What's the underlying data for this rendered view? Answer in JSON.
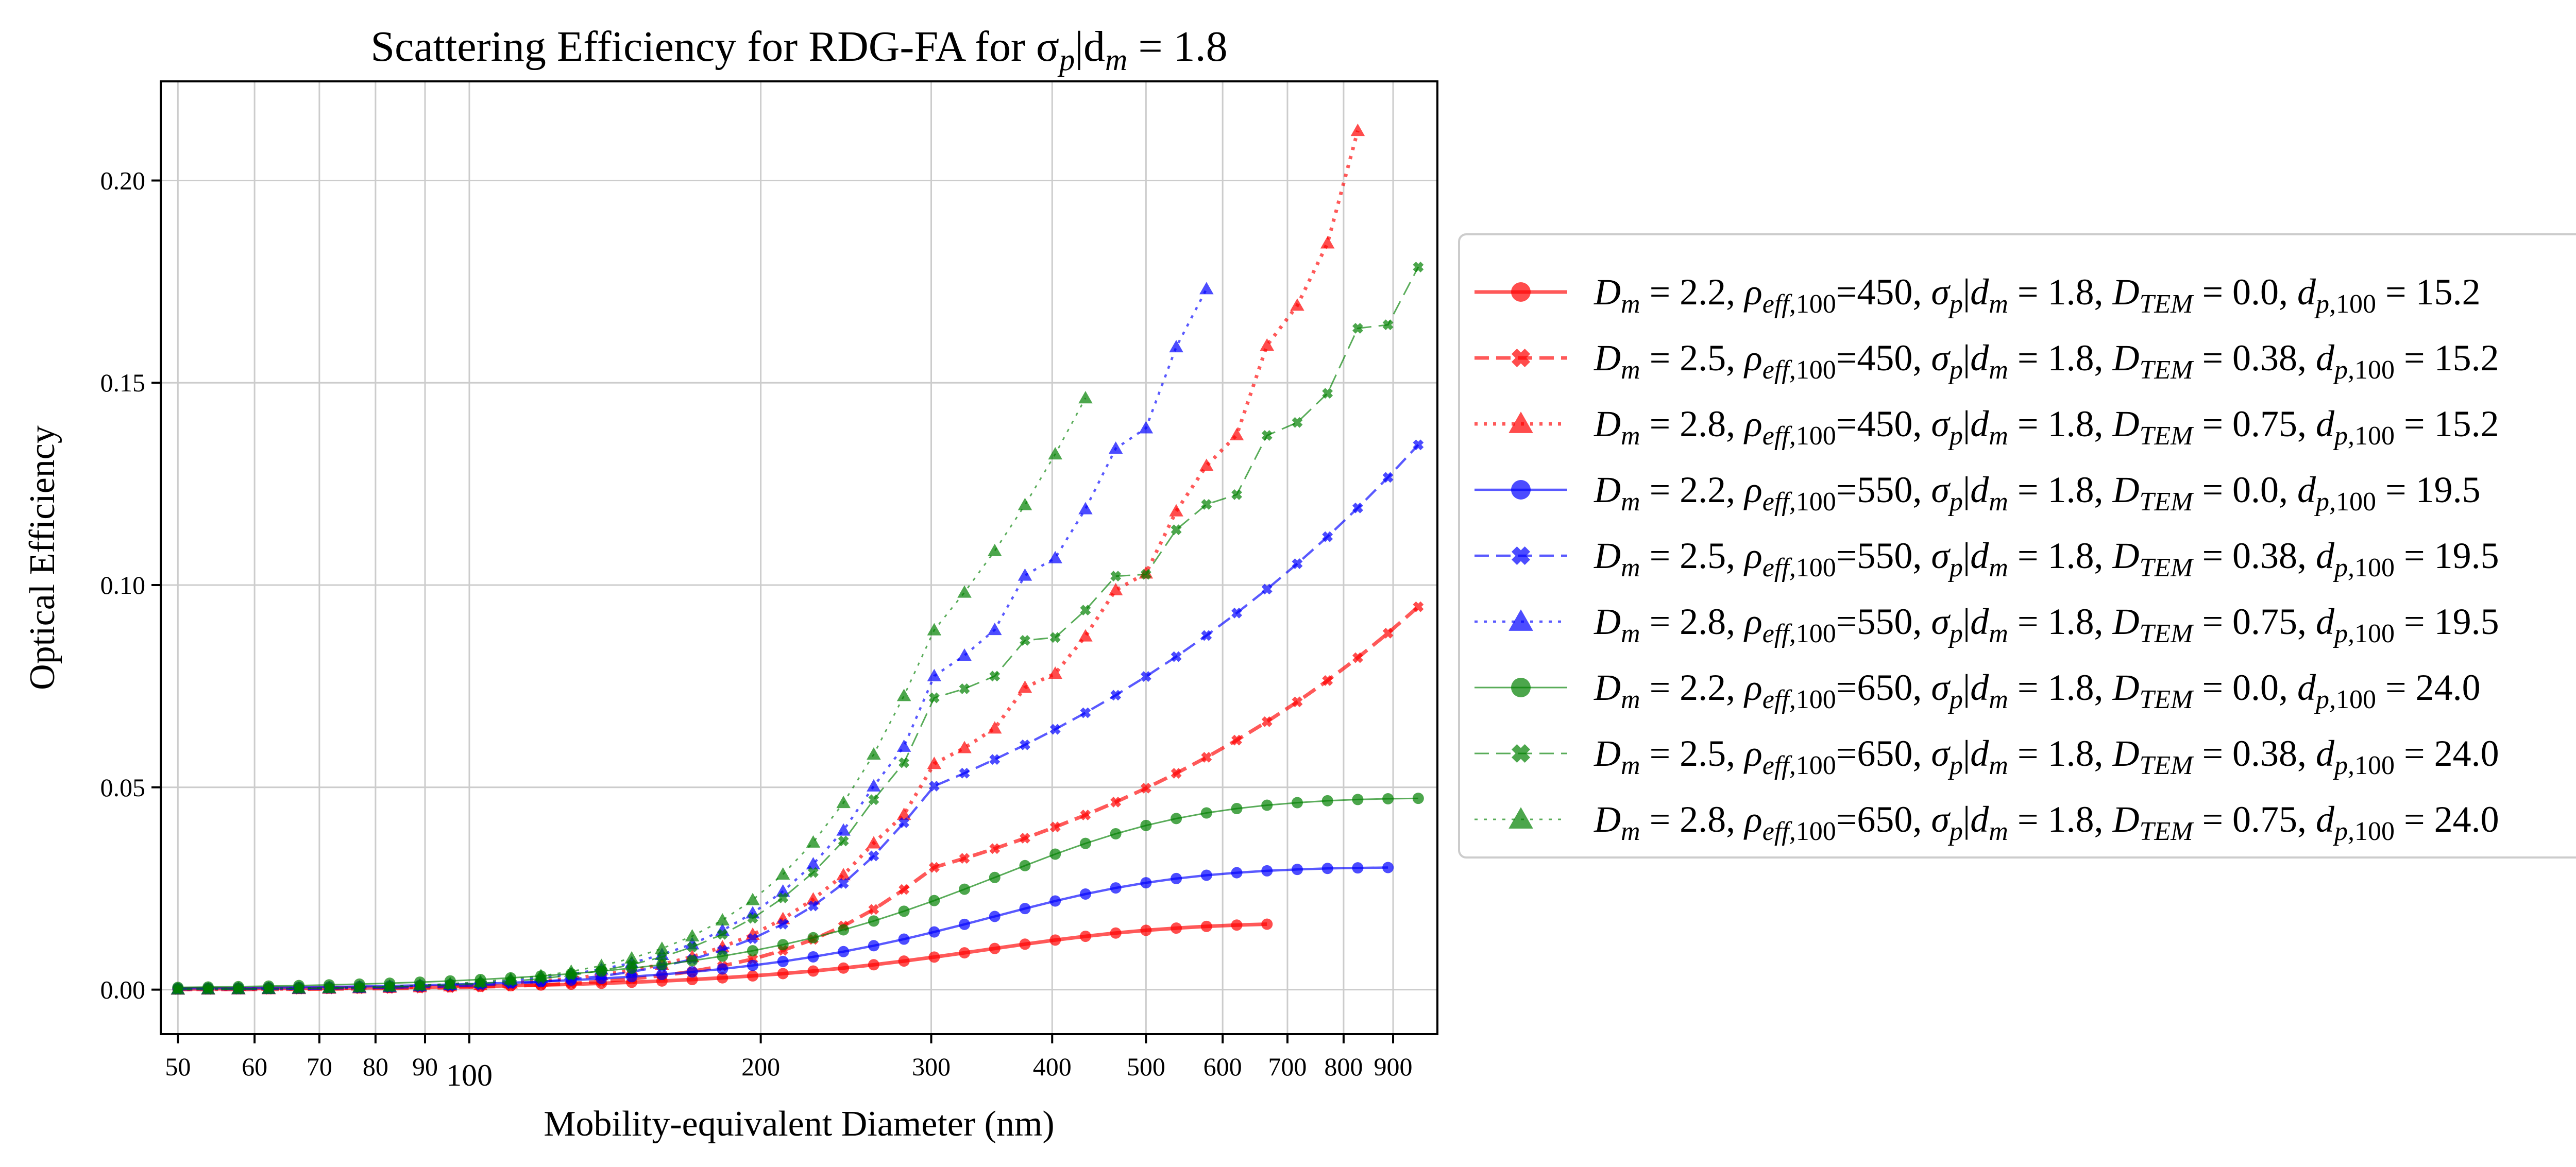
{
  "chart_data": {
    "type": "line",
    "title": "Scattering Efficiency for RDG-FA for σ",
    "title_sub": "p",
    "title_rest": "|d",
    "title_sub2": "m",
    "title_tail": " = 1.8",
    "xlabel": "Mobility-equivalent Diameter (nm)",
    "ylabel": "Optical Efficiency",
    "x_scale": "log",
    "xlim": [
      48,
      1000
    ],
    "ylim": [
      -0.011,
      0.2245
    ],
    "grid": true,
    "legend_placement": "center-right outside",
    "x_ticks": [
      {
        "value": 50,
        "label": "50"
      },
      {
        "value": 60,
        "label": "60"
      },
      {
        "value": 70,
        "label": "70"
      },
      {
        "value": 80,
        "label": "80"
      },
      {
        "value": 90,
        "label": "90"
      },
      {
        "value": 100,
        "label": "100"
      },
      {
        "value": 200,
        "label": "200"
      },
      {
        "value": 300,
        "label": "300"
      },
      {
        "value": 400,
        "label": "400"
      },
      {
        "value": 500,
        "label": "500"
      },
      {
        "value": 600,
        "label": "600"
      },
      {
        "value": 700,
        "label": "700"
      },
      {
        "value": 800,
        "label": "800"
      },
      {
        "value": 900,
        "label": "900"
      }
    ],
    "y_ticks": [
      {
        "value": 0.0,
        "label": "0.00"
      },
      {
        "value": 0.05,
        "label": "0.05"
      },
      {
        "value": 0.1,
        "label": "0.10"
      },
      {
        "value": 0.15,
        "label": "0.15"
      },
      {
        "value": 0.2,
        "label": "0.20"
      }
    ],
    "series": [
      {
        "Dm": "2.2",
        "rho": "450",
        "sig": "1.8",
        "Dtem": "0.0",
        "dp": "15.2",
        "color": "#ff0000",
        "marker": "circle",
        "dash": "solid",
        "x_max": 700,
        "y_max": 0.0165,
        "x_at_peak": 630,
        "x_ref": 330,
        "y_at_ref": 0.0108,
        "exp_high": 2.2
      },
      {
        "Dm": "2.5",
        "rho": "450",
        "sig": "1.8",
        "Dtem": "0.38",
        "dp": "15.2",
        "color": "#ff0000",
        "marker": "x",
        "dash": "dashed",
        "x_max": 1000,
        "y_max": 0.099,
        "x_ref": 300,
        "y_at_ref": 0.03,
        "exp_high": 2.0
      },
      {
        "Dm": "2.8",
        "rho": "450",
        "sig": "1.8",
        "Dtem": "0.75",
        "dp": "15.2",
        "color": "#ff0000",
        "marker": "triangle",
        "dash": "dotted",
        "x_max": 860,
        "y_max": 0.217,
        "x_ref": 300,
        "y_at_ref": 0.054,
        "exp_high": 2.7,
        "jitter": true
      },
      {
        "Dm": "2.2",
        "rho": "550",
        "sig": "1.8",
        "Dtem": "0.0",
        "dp": "19.5",
        "color": "#0000ff",
        "marker": "circle",
        "dash": "solid",
        "x_max": 900,
        "y_max": 0.03,
        "x_at_peak": 760,
        "x_ref": 330,
        "y_at_ref": 0.019,
        "exp_high": 2.2
      },
      {
        "Dm": "2.5",
        "rho": "550",
        "sig": "1.8",
        "Dtem": "0.38",
        "dp": "19.5",
        "color": "#0000ff",
        "marker": "x",
        "dash": "dashed",
        "x_max": 1000,
        "y_max": 0.14,
        "x_ref": 300,
        "y_at_ref": 0.05,
        "exp_high": 1.9
      },
      {
        "Dm": "2.8",
        "rho": "550",
        "sig": "1.8",
        "Dtem": "0.75",
        "dp": "19.5",
        "color": "#0000ff",
        "marker": "triangle",
        "dash": "dotted",
        "x_max": 600,
        "y_max": 0.18,
        "x_ref": 300,
        "y_at_ref": 0.075,
        "exp_high": 2.3,
        "jitter": true
      },
      {
        "Dm": "2.2",
        "rho": "650",
        "sig": "1.8",
        "Dtem": "0.0",
        "dp": "24.0",
        "color": "#008000",
        "marker": "circle",
        "dash": "solid",
        "x_max": 1000,
        "y_max": 0.047,
        "x_at_peak": 800,
        "x_ref": 330,
        "y_at_ref": 0.029,
        "exp_high": 2.1
      },
      {
        "Dm": "2.5",
        "rho": "650",
        "sig": "1.8",
        "Dtem": "0.38",
        "dp": "24.0",
        "color": "#008000",
        "marker": "x",
        "dash": "dashed",
        "x_max": 1000,
        "y_max": 0.185,
        "x_ref": 300,
        "y_at_ref": 0.07,
        "exp_high": 1.9,
        "jitter": true
      },
      {
        "Dm": "2.8",
        "rho": "650",
        "sig": "1.8",
        "Dtem": "0.75",
        "dp": "24.0",
        "color": "#008000",
        "marker": "triangle",
        "dash": "dotted",
        "x_max": 460,
        "y_max": 0.159,
        "x_ref": 300,
        "y_at_ref": 0.088,
        "exp_high": 1.9
      }
    ]
  }
}
